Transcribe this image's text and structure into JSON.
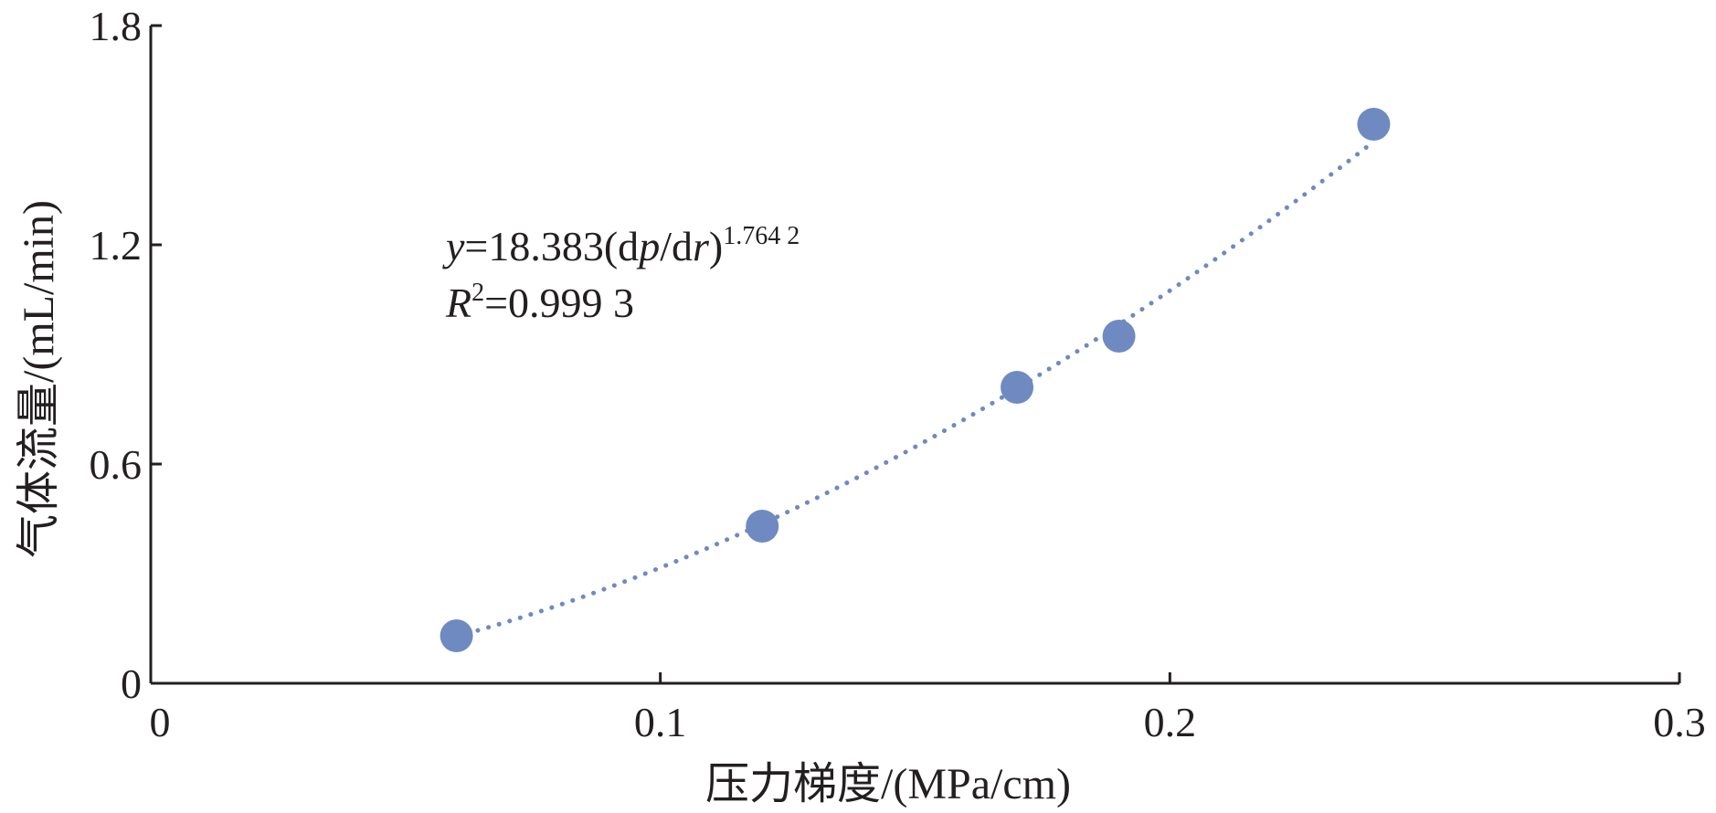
{
  "chart_data": {
    "type": "scatter",
    "xlabel": "压力梯度/(MPa/cm)",
    "ylabel": "气体流量/(mL/min)",
    "xlim": [
      0,
      0.3
    ],
    "ylim": [
      0,
      1.8
    ],
    "x_ticks": [
      "0",
      "0.1",
      "0.2",
      "0.3"
    ],
    "y_ticks": [
      "0",
      "0.6",
      "1.2",
      "1.8"
    ],
    "x_tick_values": [
      0,
      0.1,
      0.2,
      0.3
    ],
    "y_tick_values": [
      0,
      0.6,
      1.2,
      1.8
    ],
    "grid": false,
    "marker_color": "#6e8ac1",
    "trendline_color": "#6e8ac1",
    "axis_color": "#231f20",
    "series": [
      {
        "x": [
          0.06,
          0.12,
          0.17,
          0.19,
          0.24
        ],
        "y": [
          0.13,
          0.43,
          0.81,
          0.95,
          1.53
        ]
      }
    ],
    "fit": {
      "coefficient": 18.383,
      "exponent": 1.7642,
      "x_range": [
        0.06,
        0.24
      ]
    },
    "annotations": {
      "equation": {
        "y": "y",
        "eq_body": "=18.383(d",
        "p": "p",
        "slash_d": "/d",
        "r": "r",
        "close": ")",
        "exponent": "1.764 2"
      },
      "r2": {
        "R": "R",
        "two": "2",
        "value": "=0.999 3"
      }
    }
  }
}
